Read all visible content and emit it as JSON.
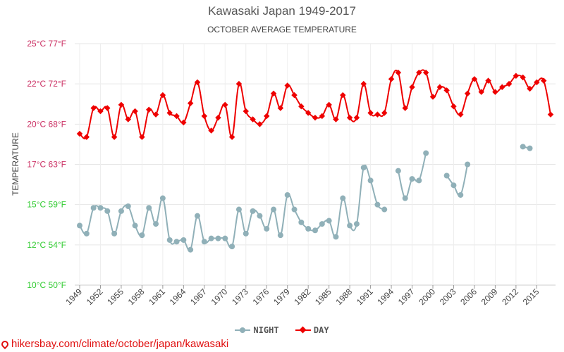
{
  "chart_data": {
    "type": "line",
    "title": "Kawasaki Japan 1949-2017",
    "subtitle": "OCTOBER AVERAGE TEMPERATURE",
    "ylabel": "TEMPERATURE",
    "ylim": [
      10,
      25
    ],
    "xlim": [
      1949,
      2017
    ],
    "y_ticks": [
      {
        "value": 10,
        "label": "10°C 50°F",
        "color": "#33cc33"
      },
      {
        "value": 12.5,
        "label": "12°C 54°F",
        "color": "#33cc33"
      },
      {
        "value": 15,
        "label": "15°C 59°F",
        "color": "#33cc33"
      },
      {
        "value": 17.5,
        "label": "17°C 63°F",
        "color": "#cc3366"
      },
      {
        "value": 20,
        "label": "20°C 68°F",
        "color": "#cc3366"
      },
      {
        "value": 22.5,
        "label": "22°C 72°F",
        "color": "#cc3366"
      },
      {
        "value": 25,
        "label": "25°C 77°F",
        "color": "#cc3366"
      }
    ],
    "x_ticks": [
      1949,
      1952,
      1955,
      1958,
      1961,
      1964,
      1967,
      1970,
      1973,
      1976,
      1979,
      1982,
      1985,
      1988,
      1991,
      1994,
      1997,
      2000,
      2003,
      2006,
      2009,
      2012,
      2015
    ],
    "grid": true,
    "legend_position": "bottom",
    "series": [
      {
        "name": "NIGHT",
        "color": "#90b0b8",
        "marker": "circle",
        "x": [
          1949,
          1950,
          1951,
          1952,
          1953,
          1954,
          1955,
          1956,
          1957,
          1958,
          1959,
          1960,
          1961,
          1962,
          1963,
          1964,
          1965,
          1966,
          1967,
          1968,
          1969,
          1970,
          1971,
          1972,
          1973,
          1974,
          1975,
          1976,
          1977,
          1978,
          1979,
          1980,
          1981,
          1982,
          1983,
          1984,
          1985,
          1986,
          1987,
          1988,
          1989,
          1990,
          1991,
          1992,
          1993,
          1994,
          1995,
          1996,
          1997,
          1998,
          1999,
          2000,
          2001,
          2002,
          2003,
          2004,
          2005,
          2006,
          2007,
          2008,
          2009,
          2010,
          2011,
          2012,
          2013,
          2014,
          2015,
          2016,
          2017
        ],
        "values": [
          13.7,
          13.2,
          14.8,
          14.8,
          14.6,
          13.2,
          14.6,
          14.9,
          13.7,
          13.1,
          14.8,
          13.8,
          15.4,
          12.8,
          12.7,
          12.8,
          12.2,
          14.3,
          12.7,
          12.9,
          12.9,
          12.9,
          12.4,
          14.7,
          13.2,
          14.6,
          14.3,
          13.5,
          14.7,
          13.1,
          15.6,
          14.7,
          13.9,
          13.5,
          13.4,
          13.8,
          14.0,
          13.0,
          15.4,
          13.7,
          13.8,
          17.3,
          16.5,
          15.0,
          14.7,
          null,
          17.1,
          15.4,
          16.6,
          16.5,
          18.2,
          null,
          null,
          16.8,
          16.2,
          15.6,
          17.5,
          null,
          null,
          null,
          null,
          null,
          null,
          null,
          18.6,
          18.5,
          null,
          null,
          null
        ]
      },
      {
        "name": "DAY",
        "color": "#ee0000",
        "marker": "diamond",
        "x": [
          1949,
          1950,
          1951,
          1952,
          1953,
          1954,
          1955,
          1956,
          1957,
          1958,
          1959,
          1960,
          1961,
          1962,
          1963,
          1964,
          1965,
          1966,
          1967,
          1968,
          1969,
          1970,
          1971,
          1972,
          1973,
          1974,
          1975,
          1976,
          1977,
          1978,
          1979,
          1980,
          1981,
          1982,
          1983,
          1984,
          1985,
          1986,
          1987,
          1988,
          1989,
          1990,
          1991,
          1992,
          1993,
          1994,
          1995,
          1996,
          1997,
          1998,
          1999,
          2000,
          2001,
          2002,
          2003,
          2004,
          2005,
          2006,
          2007,
          2008,
          2009,
          2010,
          2011,
          2012,
          2013,
          2014,
          2015,
          2016,
          2017
        ],
        "values": [
          19.4,
          19.2,
          21.0,
          20.8,
          21.0,
          19.2,
          21.2,
          20.3,
          20.8,
          19.2,
          20.9,
          20.6,
          21.8,
          20.7,
          20.5,
          20.1,
          21.3,
          22.6,
          20.5,
          19.6,
          20.4,
          21.2,
          19.2,
          22.5,
          20.8,
          20.3,
          20.0,
          20.5,
          21.9,
          21.0,
          22.4,
          21.8,
          21.1,
          20.7,
          20.4,
          20.5,
          21.2,
          20.3,
          21.8,
          20.4,
          20.4,
          22.5,
          20.7,
          20.6,
          20.7,
          22.8,
          23.2,
          21.0,
          22.3,
          23.2,
          23.2,
          21.7,
          22.3,
          22.1,
          21.1,
          20.6,
          21.9,
          22.8,
          22.0,
          22.7,
          22.0,
          22.3,
          22.5,
          23.0,
          22.9,
          22.2,
          22.6,
          22.7,
          20.6
        ]
      }
    ]
  },
  "footer": {
    "url_text": "hikersbay.com/climate/october/japan/kawasaki",
    "icon": "map-pin-icon"
  }
}
